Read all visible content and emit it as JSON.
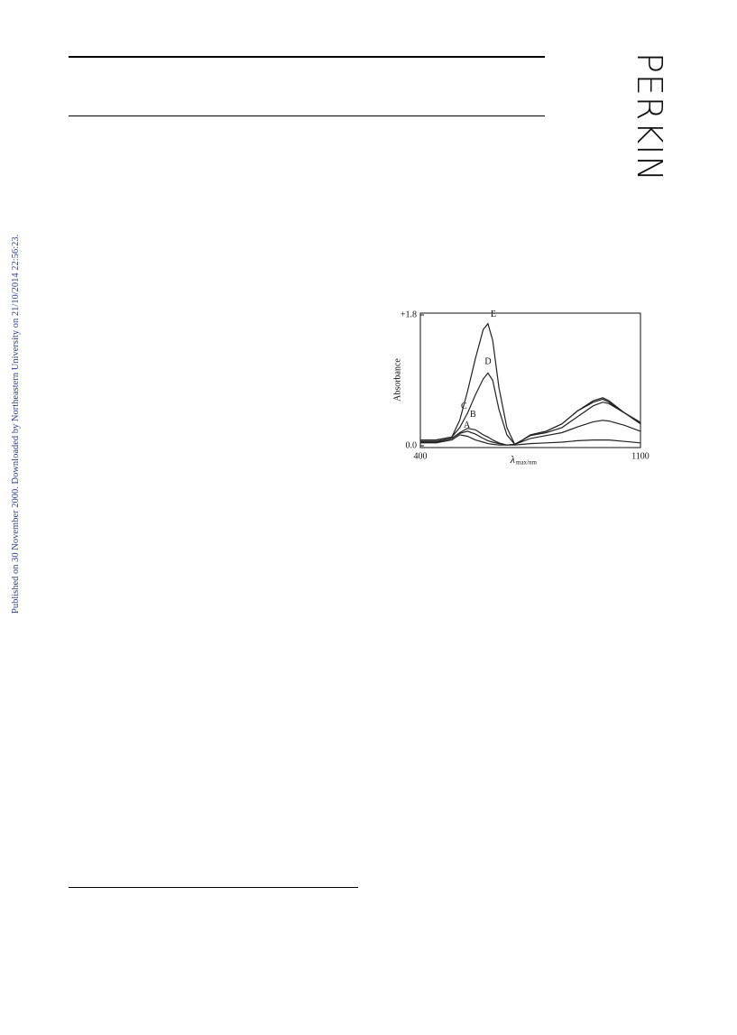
{
  "sidebar": "Published on 30 November 2000. Downloaded by Northeastern University on 21/10/2014 22:56:23.",
  "brand": "PERKIN",
  "chart_data": {
    "type": "line",
    "y_label": "Absorbance",
    "x_label": "λ",
    "x_label_sub": "max/nm",
    "xlim": [
      400,
      1100
    ],
    "xticks": [
      400,
      1100
    ],
    "ylim": [
      0,
      1.8
    ],
    "yticks": [
      {
        "value": 0,
        "label": "0.0"
      },
      {
        "value": 1.8,
        "label": "+1.8"
      }
    ],
    "x": [
      400,
      450,
      500,
      525,
      550,
      575,
      600,
      615,
      630,
      650,
      675,
      700,
      725,
      750,
      800,
      850,
      900,
      950,
      980,
      1000,
      1050,
      1100
    ],
    "series": [
      {
        "name": "A",
        "color": "#222222",
        "values": [
          0.04,
          0.04,
          0.08,
          0.15,
          0.13,
          0.08,
          0.05,
          0.03,
          0.02,
          0.01,
          0.01,
          0.01,
          0.02,
          0.03,
          0.04,
          0.05,
          0.07,
          0.08,
          0.08,
          0.08,
          0.06,
          0.04
        ]
      },
      {
        "name": "B",
        "color": "#222222",
        "values": [
          0.05,
          0.05,
          0.1,
          0.17,
          0.2,
          0.16,
          0.1,
          0.07,
          0.05,
          0.03,
          0.01,
          0.02,
          0.06,
          0.1,
          0.14,
          0.18,
          0.26,
          0.33,
          0.35,
          0.34,
          0.28,
          0.2
        ]
      },
      {
        "name": "C",
        "color": "#222222",
        "values": [
          0.06,
          0.06,
          0.1,
          0.18,
          0.24,
          0.22,
          0.15,
          0.12,
          0.08,
          0.04,
          0.01,
          0.02,
          0.08,
          0.14,
          0.18,
          0.25,
          0.4,
          0.55,
          0.6,
          0.58,
          0.45,
          0.32
        ]
      },
      {
        "name": "D",
        "color": "#222222",
        "values": [
          0.08,
          0.08,
          0.12,
          0.25,
          0.45,
          0.7,
          0.92,
          1.0,
          0.9,
          0.5,
          0.15,
          0.02,
          0.08,
          0.15,
          0.2,
          0.3,
          0.48,
          0.6,
          0.64,
          0.6,
          0.45,
          0.3
        ]
      },
      {
        "name": "E",
        "color": "#222222",
        "values": [
          0.08,
          0.08,
          0.12,
          0.35,
          0.75,
          1.2,
          1.6,
          1.68,
          1.45,
          0.8,
          0.25,
          0.02,
          0.08,
          0.15,
          0.2,
          0.3,
          0.48,
          0.62,
          0.66,
          0.62,
          0.45,
          0.32
        ]
      }
    ]
  }
}
